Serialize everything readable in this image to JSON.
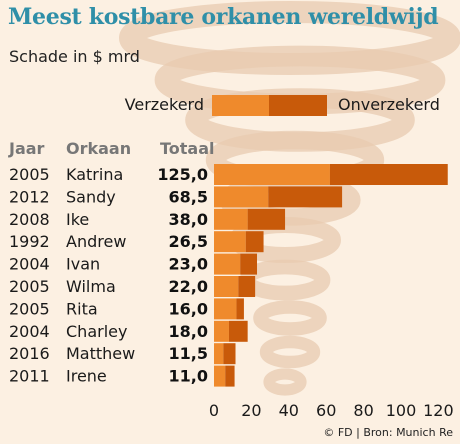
{
  "header": {
    "title": "Meest kostbare orkanen wereldwijd",
    "subtitle": "Schade in $ mrd"
  },
  "legend": {
    "insured": "Verzekerd",
    "uninsured": "Onverzekerd"
  },
  "columns": {
    "year": "Jaar",
    "name": "Orkaan",
    "total": "Totaal"
  },
  "colors": {
    "insured": "#ef8a2c",
    "uninsured": "#c85a0a",
    "title": "#2f8fa8",
    "background": "#fcf0e2",
    "tornado": "#e8cbb0"
  },
  "source": "© FD | Bron: Munich Re",
  "chart_data": {
    "type": "bar",
    "orientation": "horizontal",
    "stacked": true,
    "title": "Meest kostbare orkanen wereldwijd",
    "subtitle": "Schade in $ mrd",
    "xlim": [
      0,
      125
    ],
    "xticks": [
      0,
      20,
      40,
      60,
      80,
      100,
      120
    ],
    "legend_position": "top",
    "rows": [
      {
        "year": "2005",
        "name": "Katrina",
        "total_label": "125,0",
        "insured": 62,
        "uninsured": 63
      },
      {
        "year": "2012",
        "name": "Sandy",
        "total_label": "68,5",
        "insured": 29,
        "uninsured": 39.5
      },
      {
        "year": "2008",
        "name": "Ike",
        "total_label": "38,0",
        "insured": 18,
        "uninsured": 20
      },
      {
        "year": "1992",
        "name": "Andrew",
        "total_label": "26,5",
        "insured": 17,
        "uninsured": 9.5
      },
      {
        "year": "2004",
        "name": "Ivan",
        "total_label": "23,0",
        "insured": 14,
        "uninsured": 9
      },
      {
        "year": "2005",
        "name": "Wilma",
        "total_label": "22,0",
        "insured": 13,
        "uninsured": 9
      },
      {
        "year": "2005",
        "name": "Rita",
        "total_label": "16,0",
        "insured": 12,
        "uninsured": 4
      },
      {
        "year": "2004",
        "name": "Charley",
        "total_label": "18,0",
        "insured": 8,
        "uninsured": 10
      },
      {
        "year": "2016",
        "name": "Matthew",
        "total_label": "11,5",
        "insured": 5,
        "uninsured": 6.5
      },
      {
        "year": "2011",
        "name": "Irene",
        "total_label": "11,0",
        "insured": 6,
        "uninsured": 5
      }
    ]
  }
}
